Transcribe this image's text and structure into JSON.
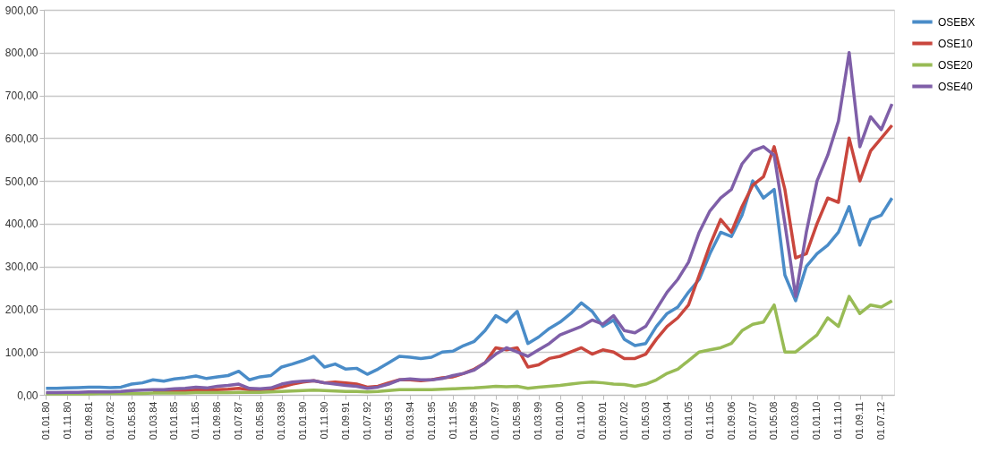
{
  "chart_data": {
    "type": "line",
    "categories": [
      "01.01.80",
      null,
      "01.11.80",
      null,
      "01.09.81",
      null,
      "01.07.82",
      null,
      "01.05.83",
      null,
      "01.03.84",
      null,
      "01.01.85",
      null,
      "01.11.85",
      null,
      "01.09.86",
      null,
      "01.07.87",
      null,
      "01.05.88",
      null,
      "01.03.89",
      null,
      "01.01.90",
      null,
      "01.11.90",
      null,
      "01.09.91",
      null,
      "01.07.92",
      null,
      "01.05.93",
      null,
      "01.03.94",
      null,
      "01.01.95",
      null,
      "01.11.95",
      null,
      "01.09.96",
      null,
      "01.07.97",
      null,
      "01.05.98",
      null,
      "01.03.99",
      null,
      "01.01.00",
      null,
      "01.11.00",
      null,
      "01.09.01",
      null,
      "01.07.02",
      null,
      "01.05.03",
      null,
      "01.03.04",
      null,
      "01.01.05",
      null,
      "01.11.05",
      null,
      "01.09.06",
      null,
      "01.07.07",
      null,
      "01.05.08",
      null,
      "01.03.09",
      null,
      "01.01.10",
      null,
      "01.11.10",
      null,
      "01.09.11",
      null,
      "01.07.12",
      null
    ],
    "series": [
      {
        "name": "OSEBX",
        "color": "#4a8cc8",
        "values": [
          15,
          15,
          16,
          17,
          18,
          18,
          17,
          18,
          25,
          28,
          35,
          32,
          37,
          40,
          44,
          38,
          42,
          45,
          55,
          35,
          42,
          45,
          65,
          72,
          80,
          90,
          65,
          72,
          60,
          62,
          48,
          60,
          75,
          90,
          88,
          85,
          88,
          100,
          102,
          115,
          125,
          150,
          185,
          170,
          195,
          120,
          135,
          155,
          170,
          190,
          215,
          195,
          160,
          175,
          130,
          115,
          120,
          160,
          190,
          205,
          240,
          270,
          330,
          380,
          370,
          420,
          500,
          460,
          480,
          280,
          220,
          300,
          330,
          350,
          380,
          440,
          350,
          410,
          420,
          460
        ]
      },
      {
        "name": "OSE10",
        "color": "#c9463d",
        "values": [
          null,
          null,
          null,
          null,
          null,
          null,
          null,
          null,
          null,
          null,
          9,
          9,
          10,
          10,
          11,
          11,
          12,
          13,
          15,
          12,
          12,
          13,
          18,
          25,
          30,
          33,
          28,
          30,
          28,
          25,
          18,
          20,
          28,
          35,
          35,
          33,
          35,
          40,
          42,
          50,
          60,
          75,
          110,
          105,
          110,
          65,
          70,
          85,
          90,
          100,
          110,
          95,
          105,
          100,
          85,
          85,
          95,
          130,
          160,
          180,
          210,
          280,
          350,
          410,
          380,
          440,
          490,
          510,
          580,
          480,
          320,
          330,
          400,
          460,
          450,
          600,
          500,
          570,
          600,
          630
        ]
      },
      {
        "name": "OSE20",
        "color": "#98bb55",
        "values": [
          2,
          2,
          2,
          2,
          2,
          3,
          3,
          3,
          3,
          3,
          4,
          4,
          4,
          4,
          5,
          5,
          5,
          5,
          6,
          6,
          6,
          7,
          8,
          9,
          10,
          11,
          10,
          9,
          8,
          8,
          7,
          8,
          10,
          12,
          12,
          12,
          12,
          13,
          14,
          15,
          16,
          18,
          20,
          19,
          20,
          15,
          18,
          20,
          22,
          25,
          28,
          30,
          28,
          25,
          24,
          20,
          25,
          35,
          50,
          60,
          80,
          100,
          105,
          110,
          120,
          150,
          165,
          170,
          210,
          100,
          100,
          120,
          140,
          180,
          160,
          230,
          190,
          210,
          205,
          220
        ]
      },
      {
        "name": "OSE40",
        "color": "#7f5fa8",
        "values": [
          5,
          5,
          6,
          6,
          7,
          7,
          7,
          8,
          10,
          11,
          12,
          12,
          14,
          15,
          18,
          16,
          20,
          22,
          25,
          15,
          14,
          16,
          25,
          30,
          32,
          33,
          28,
          25,
          22,
          20,
          15,
          18,
          25,
          35,
          37,
          35,
          35,
          38,
          45,
          50,
          58,
          75,
          95,
          110,
          100,
          90,
          105,
          120,
          140,
          150,
          160,
          175,
          165,
          185,
          150,
          145,
          160,
          200,
          240,
          270,
          310,
          380,
          430,
          460,
          480,
          540,
          570,
          580,
          560,
          400,
          230,
          380,
          500,
          560,
          640,
          800,
          580,
          650,
          620,
          680
        ]
      }
    ],
    "ylim": [
      0,
      900
    ],
    "yticks": [
      {
        "value": 0,
        "label": "0,00"
      },
      {
        "value": 100,
        "label": "100,00"
      },
      {
        "value": 200,
        "label": "200,00"
      },
      {
        "value": 300,
        "label": "300,00"
      },
      {
        "value": 400,
        "label": "400,00"
      },
      {
        "value": 500,
        "label": "500,00"
      },
      {
        "value": 600,
        "label": "600,00"
      },
      {
        "value": 700,
        "label": "700,00"
      },
      {
        "value": 800,
        "label": "800,00"
      },
      {
        "value": 900,
        "label": "900,00"
      }
    ],
    "grid": "y",
    "legend": "right",
    "marker": "none",
    "line_style": "solid"
  }
}
